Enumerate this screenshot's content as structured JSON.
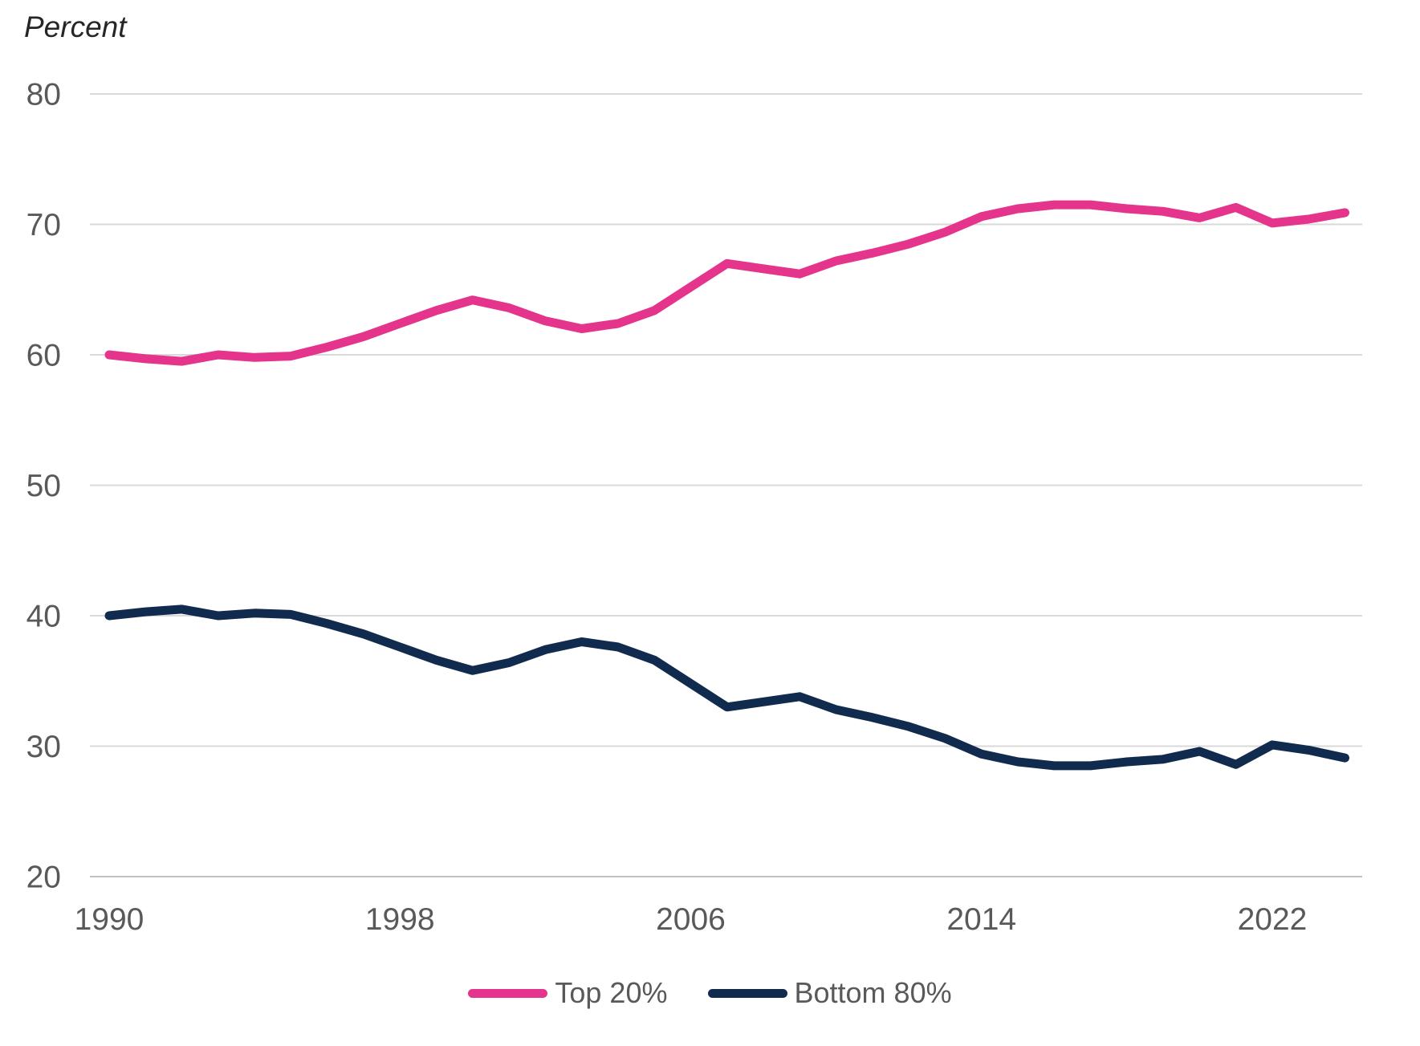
{
  "chart_data": {
    "type": "line",
    "title": "Percent",
    "x": [
      1990,
      1991,
      1992,
      1993,
      1994,
      1995,
      1996,
      1997,
      1998,
      1999,
      2000,
      2001,
      2002,
      2003,
      2004,
      2005,
      2006,
      2007,
      2008,
      2009,
      2010,
      2011,
      2012,
      2013,
      2014,
      2015,
      2016,
      2017,
      2018,
      2019,
      2020,
      2021,
      2022,
      2023,
      2024
    ],
    "series": [
      {
        "name": "Top 20%",
        "color": "#E5348B",
        "values": [
          60.0,
          59.7,
          59.5,
          60.0,
          59.8,
          59.9,
          60.6,
          61.4,
          62.4,
          63.4,
          64.2,
          63.6,
          62.6,
          62.0,
          62.4,
          63.4,
          65.2,
          67.0,
          66.6,
          66.2,
          67.2,
          67.8,
          68.5,
          69.4,
          70.6,
          71.2,
          71.5,
          71.5,
          71.2,
          71.0,
          70.5,
          71.3,
          70.1,
          70.4,
          70.9
        ]
      },
      {
        "name": "Bottom 80%",
        "color": "#112B4E",
        "values": [
          40.0,
          40.3,
          40.5,
          40.0,
          40.2,
          40.1,
          39.4,
          38.6,
          37.6,
          36.6,
          35.8,
          36.4,
          37.4,
          38.0,
          37.6,
          36.6,
          34.8,
          33.0,
          33.4,
          33.8,
          32.8,
          32.2,
          31.5,
          30.6,
          29.4,
          28.8,
          28.5,
          28.5,
          28.8,
          29.0,
          29.6,
          28.6,
          30.1,
          29.7,
          29.1
        ]
      }
    ],
    "ylim": [
      20,
      80
    ],
    "yticks": [
      20,
      30,
      40,
      50,
      60,
      70,
      80
    ],
    "xticks": [
      1990,
      1998,
      2006,
      2014,
      2022
    ],
    "grid": "horizontal",
    "legend_position": "bottom-center"
  },
  "legend": {
    "items": [
      {
        "label": "Top 20%"
      },
      {
        "label": "Bottom 80%"
      }
    ]
  },
  "colors": {
    "top_series": "#E5348B",
    "bottom_series": "#112B4E",
    "gridline": "#D9D9D9",
    "axis_line": "#C2C2C2",
    "tick_text": "#595959",
    "title_text": "#262626",
    "background": "#FFFFFF"
  }
}
